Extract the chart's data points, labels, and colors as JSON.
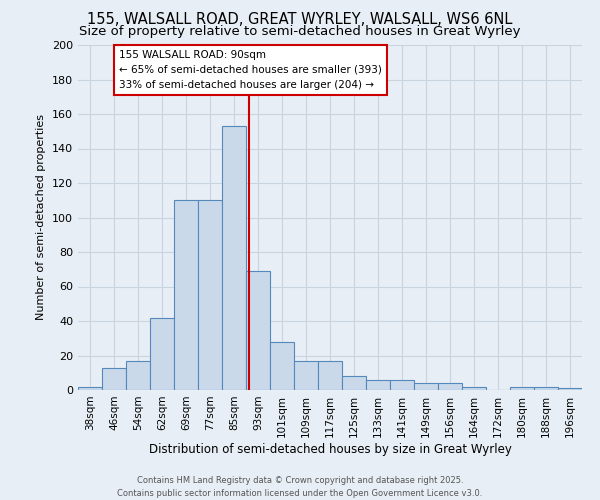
{
  "title_line1": "155, WALSALL ROAD, GREAT WYRLEY, WALSALL, WS6 6NL",
  "title_line2": "Size of property relative to semi-detached houses in Great Wyrley",
  "xlabel": "Distribution of semi-detached houses by size in Great Wyrley",
  "ylabel": "Number of semi-detached properties",
  "footer_line1": "Contains HM Land Registry data © Crown copyright and database right 2025.",
  "footer_line2": "Contains public sector information licensed under the Open Government Licence v3.0.",
  "bar_labels": [
    "38sqm",
    "46sqm",
    "54sqm",
    "62sqm",
    "69sqm",
    "77sqm",
    "85sqm",
    "93sqm",
    "101sqm",
    "109sqm",
    "117sqm",
    "125sqm",
    "133sqm",
    "141sqm",
    "149sqm",
    "156sqm",
    "164sqm",
    "172sqm",
    "180sqm",
    "188sqm",
    "196sqm"
  ],
  "bar_values": [
    2,
    13,
    17,
    42,
    110,
    110,
    153,
    69,
    28,
    17,
    17,
    8,
    6,
    6,
    4,
    4,
    2,
    0,
    2,
    2,
    1
  ],
  "bar_color": "#c9d9ea",
  "bar_edge_color": "#5588bb",
  "annotation_title": "155 WALSALL ROAD: 90sqm",
  "annotation_line1": "← 65% of semi-detached houses are smaller (393)",
  "annotation_line2": "33% of semi-detached houses are larger (204) →",
  "annotation_box_color": "#ffffff",
  "annotation_box_edge": "#cc0000",
  "ref_line_color": "#cc0000",
  "ylim": [
    0,
    200
  ],
  "yticks": [
    0,
    20,
    40,
    60,
    80,
    100,
    120,
    140,
    160,
    180,
    200
  ],
  "background_color": "#e8eef5",
  "grid_color": "#c8d4e0",
  "title_fontsize": 10.5,
  "subtitle_fontsize": 9.5
}
